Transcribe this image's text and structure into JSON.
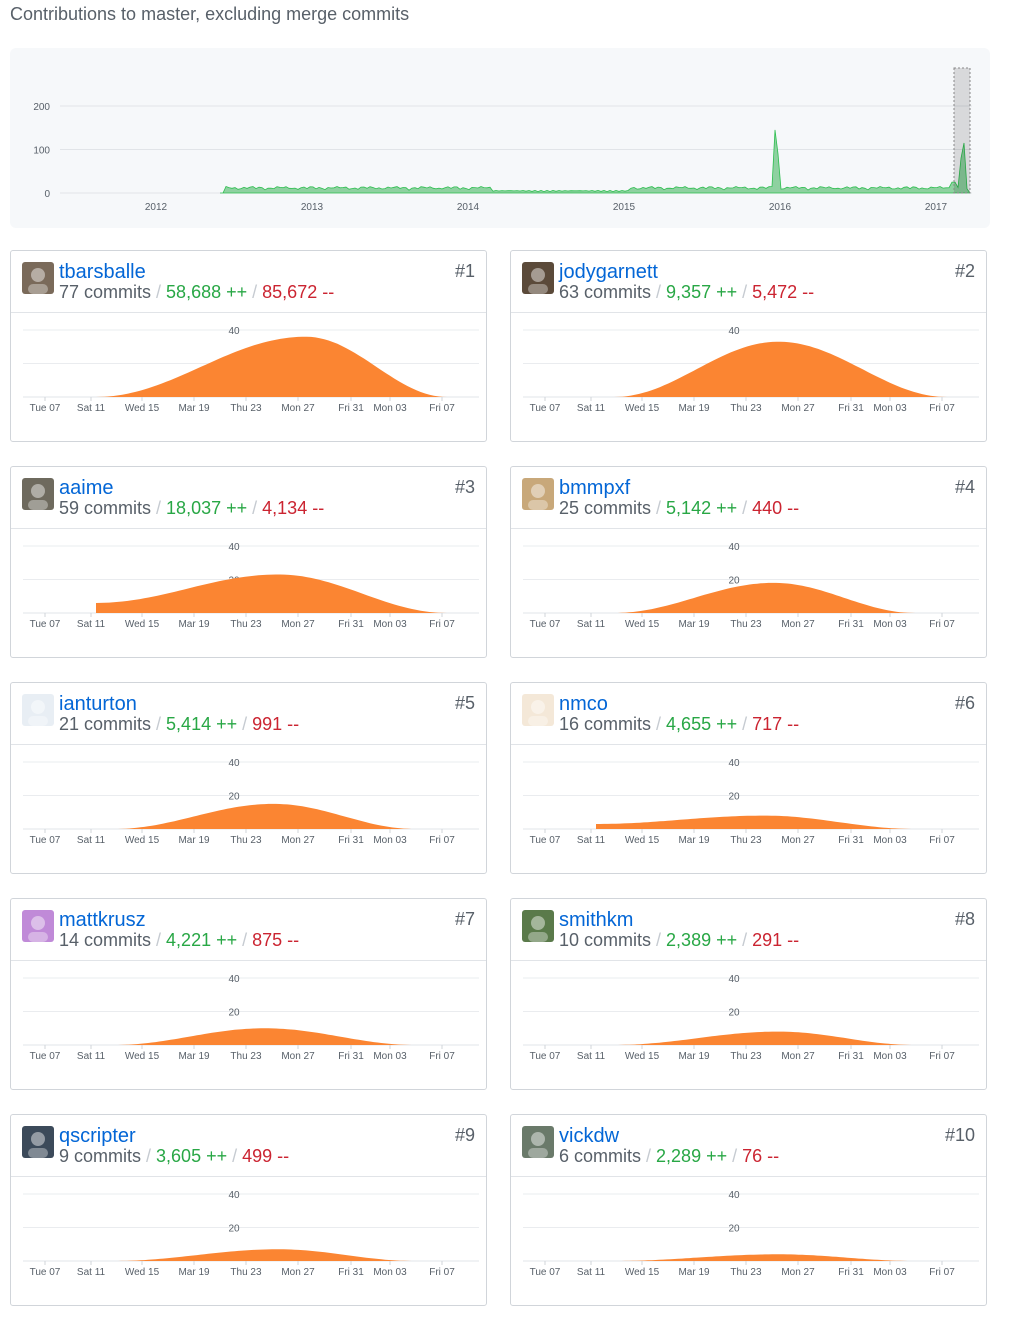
{
  "header": {
    "title": "Contributions to master, excluding merge commits"
  },
  "overview_chart": {
    "type": "area",
    "y_ticks": [
      "200",
      "100",
      "0"
    ],
    "x_ticks": [
      "2012",
      "2013",
      "2014",
      "2015",
      "2016",
      "2017"
    ],
    "ylim": [
      0,
      250
    ],
    "color": "#2cbe4e",
    "fill": "#8ed1a0"
  },
  "contributor_chart": {
    "x_ticks": [
      "Tue 07",
      "Sat 11",
      "Wed 15",
      "Mar 19",
      "Thu 23",
      "Mon 27",
      "Fri 31",
      "Mon 03",
      "Fri 07"
    ],
    "y_ticks": [
      "40",
      "20"
    ],
    "ylim": [
      0,
      45
    ],
    "fill": "#fb8532"
  },
  "contributors": [
    {
      "username": "tbarsballe",
      "commits": "77 commits",
      "additions": "58,688 ++",
      "deletions": "85,672 --",
      "rank": "#1",
      "show20": false,
      "curve": {
        "start": 0.16,
        "end": 0.93,
        "peak": 0.62,
        "height": 36,
        "base": 0
      }
    },
    {
      "username": "jodygarnett",
      "commits": "63 commits",
      "additions": "9,357 ++",
      "deletions": "5,472 --",
      "rank": "#2",
      "show20": false,
      "curve": {
        "start": 0.2,
        "end": 0.93,
        "peak": 0.56,
        "height": 33,
        "base": 0
      }
    },
    {
      "username": "aaime",
      "commits": "59 commits",
      "additions": "18,037 ++",
      "deletions": "4,134 --",
      "rank": "#3",
      "show20": true,
      "curve": {
        "start": 0.16,
        "end": 0.93,
        "peak": 0.56,
        "height": 23,
        "base": 6
      }
    },
    {
      "username": "bmmpxf",
      "commits": "25 commits",
      "additions": "5,142 ++",
      "deletions": "440 --",
      "rank": "#4",
      "show20": true,
      "curve": {
        "start": 0.2,
        "end": 0.86,
        "peak": 0.55,
        "height": 18,
        "base": 0
      }
    },
    {
      "username": "ianturton",
      "commits": "21 commits",
      "additions": "5,414 ++",
      "deletions": "991 --",
      "rank": "#5",
      "show20": true,
      "curve": {
        "start": 0.2,
        "end": 0.86,
        "peak": 0.55,
        "height": 15,
        "base": 0
      }
    },
    {
      "username": "nmco",
      "commits": "16 commits",
      "additions": "4,655 ++",
      "deletions": "717 --",
      "rank": "#6",
      "show20": true,
      "curve": {
        "start": 0.16,
        "end": 0.86,
        "peak": 0.53,
        "height": 8,
        "base": 3
      }
    },
    {
      "username": "mattkrusz",
      "commits": "14 commits",
      "additions": "4,221 ++",
      "deletions": "875 --",
      "rank": "#7",
      "show20": true,
      "curve": {
        "start": 0.2,
        "end": 0.86,
        "peak": 0.53,
        "height": 10,
        "base": 0
      }
    },
    {
      "username": "smithkm",
      "commits": "10 commits",
      "additions": "2,389 ++",
      "deletions": "291 --",
      "rank": "#8",
      "show20": true,
      "curve": {
        "start": 0.2,
        "end": 0.86,
        "peak": 0.56,
        "height": 8,
        "base": 0
      }
    },
    {
      "username": "qscripter",
      "commits": "9 commits",
      "additions": "3,605 ++",
      "deletions": "499 --",
      "rank": "#9",
      "show20": true,
      "curve": {
        "start": 0.2,
        "end": 0.86,
        "peak": 0.56,
        "height": 7,
        "base": 0
      }
    },
    {
      "username": "vickdw",
      "commits": "6 commits",
      "additions": "2,289 ++",
      "deletions": "76 --",
      "rank": "#10",
      "show20": true,
      "curve": {
        "start": 0.2,
        "end": 0.86,
        "peak": 0.56,
        "height": 4,
        "base": 0
      }
    }
  ]
}
